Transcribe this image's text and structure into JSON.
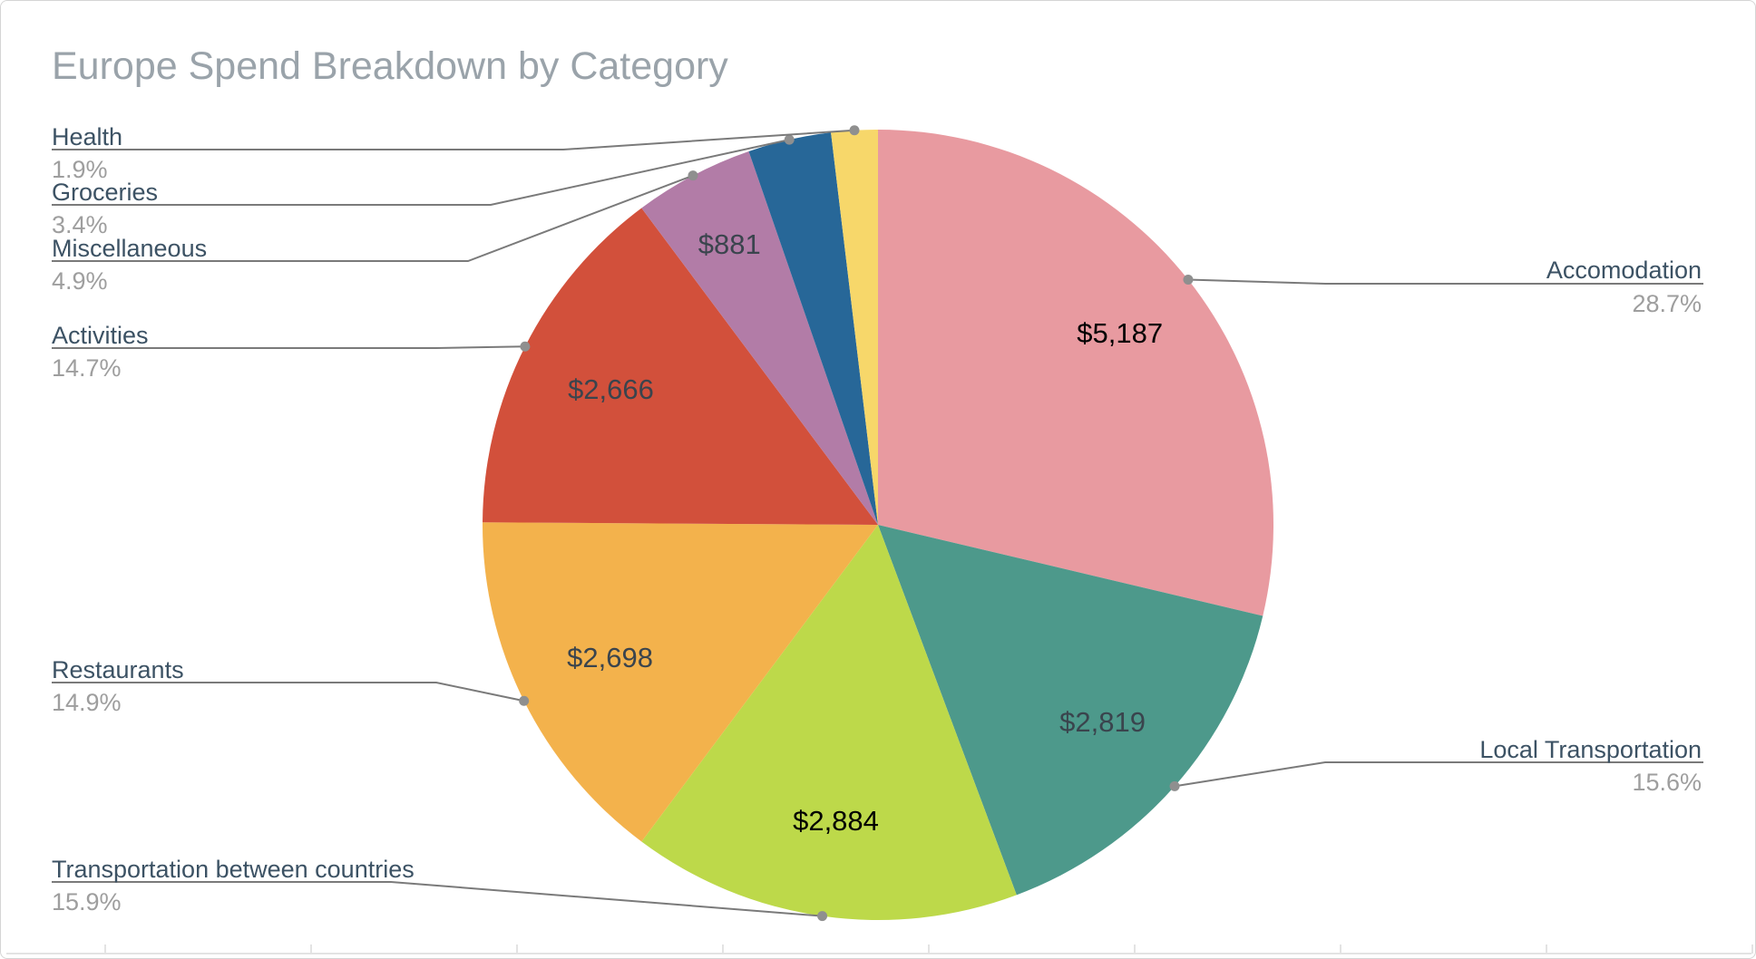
{
  "title": "Europe Spend Breakdown by Category",
  "chart_data": {
    "type": "pie",
    "title": "Europe Spend Breakdown by Category",
    "rotation": "clockwise",
    "start_angle_deg": 0,
    "legend_position": "outside-labels-with-leader-lines",
    "grid": false,
    "slices": [
      {
        "label": "Accomodation",
        "pct": 28.7,
        "pct_label": "28.7%",
        "value_label": "$5,187",
        "color": "#e89aa0"
      },
      {
        "label": "Local Transportation",
        "pct": 15.6,
        "pct_label": "15.6%",
        "value_label": "$2,819",
        "color": "#4d998b"
      },
      {
        "label": "Transportation between countries",
        "pct": 15.9,
        "pct_label": "15.9%",
        "value_label": "$2,884",
        "color": "#bdd94a"
      },
      {
        "label": "Restaurants",
        "pct": 14.9,
        "pct_label": "14.9%",
        "value_label": "$2,698",
        "color": "#f3b24c"
      },
      {
        "label": "Activities",
        "pct": 14.7,
        "pct_label": "14.7%",
        "value_label": "$2,666",
        "color": "#d2503b"
      },
      {
        "label": "Miscellaneous",
        "pct": 4.9,
        "pct_label": "4.9%",
        "value_label": "$881",
        "color": "#b27ca7"
      },
      {
        "label": "Groceries",
        "pct": 3.4,
        "pct_label": "3.4%",
        "value_label": null,
        "color": "#276798"
      },
      {
        "label": "Health",
        "pct": 1.9,
        "pct_label": "1.9%",
        "value_label": null,
        "color": "#f7d76a"
      }
    ]
  },
  "colors": {
    "title": "#9aa3aa",
    "category_label": "#3c5264",
    "percent_label": "#9e9e9e",
    "leader_line": "#7a7a7a",
    "leader_dot": "#8f8f8f",
    "value_label_dark": "#3a444d",
    "value_label_black": "#000000",
    "baseline": "#e3e3e3"
  }
}
